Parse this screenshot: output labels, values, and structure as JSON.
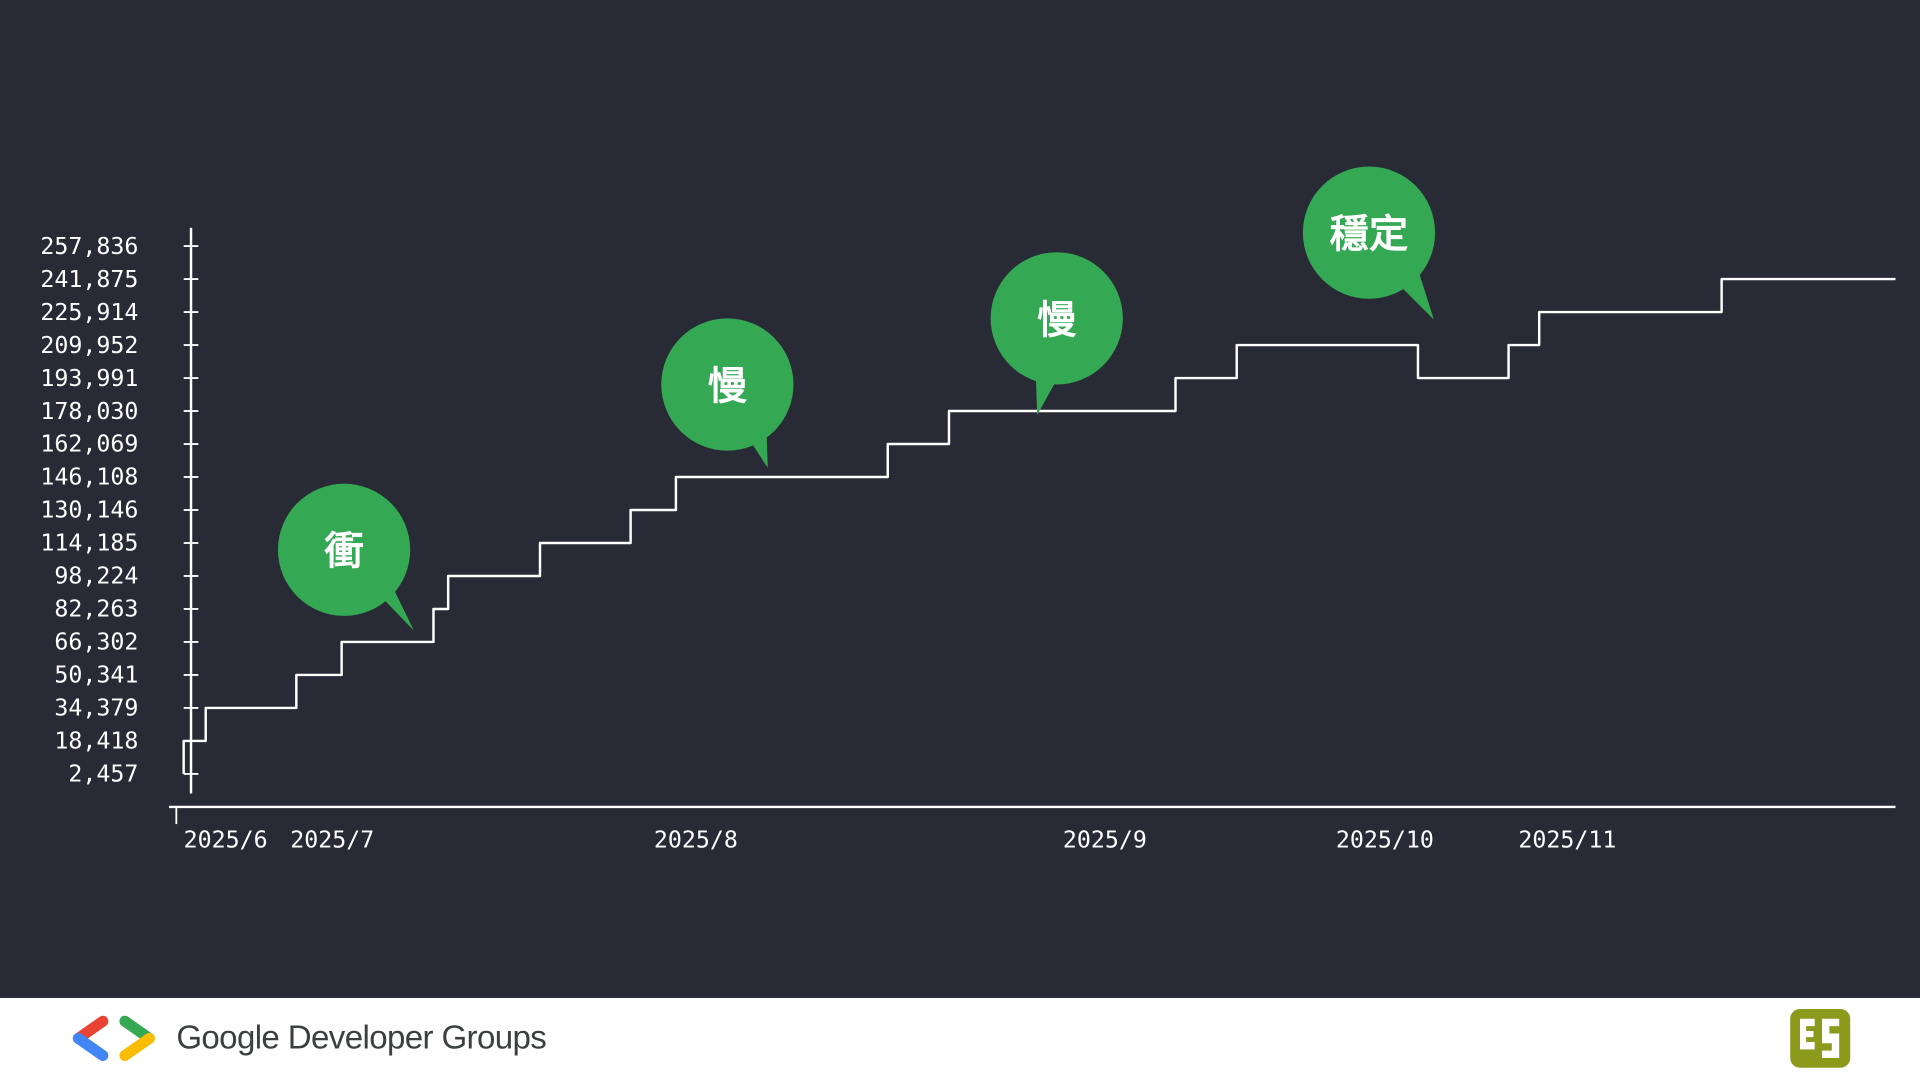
{
  "chart_data": {
    "type": "line",
    "step": "post",
    "x": [
      0,
      18,
      92,
      129,
      204,
      216,
      291,
      365,
      402,
      575,
      625,
      810,
      860,
      1008,
      1082,
      1107,
      1256,
      1343,
      1398
    ],
    "series": [
      {
        "color": "#ffffff",
        "values": [
          2457,
          18418,
          34379,
          50341,
          66302,
          82263,
          98224,
          114185,
          130146,
          146108,
          162069,
          178030,
          193991,
          209952,
          193991,
          209952,
          225914,
          241875,
          241875
        ]
      }
    ],
    "xlim": [
      -12,
      1398
    ],
    "xticks": [
      {
        "value": 0,
        "label": "2025/6"
      },
      {
        "value": 87,
        "label": "2025/7"
      },
      {
        "value": 384,
        "label": "2025/8"
      },
      {
        "value": 718,
        "label": "2025/9"
      },
      {
        "value": 941,
        "label": "2025/10"
      },
      {
        "value": 1090,
        "label": "2025/11"
      }
    ],
    "ylim": [
      -7000,
      266700
    ],
    "yticks": [
      {
        "value": 2457,
        "label": "2,457"
      },
      {
        "value": 18418,
        "label": "18,418"
      },
      {
        "value": 34379,
        "label": "34,379"
      },
      {
        "value": 50341,
        "label": "50,341"
      },
      {
        "value": 66302,
        "label": "66,302"
      },
      {
        "value": 82263,
        "label": "82,263"
      },
      {
        "value": 98224,
        "label": "98,224"
      },
      {
        "value": 114185,
        "label": "114,185"
      },
      {
        "value": 130146,
        "label": "130,146"
      },
      {
        "value": 146108,
        "label": "146,108"
      },
      {
        "value": 162069,
        "label": "162,069"
      },
      {
        "value": 178030,
        "label": "178,030"
      },
      {
        "value": 193991,
        "label": "193,991"
      },
      {
        "value": 209952,
        "label": "209,952"
      },
      {
        "value": 225914,
        "label": "225,914"
      },
      {
        "value": 241875,
        "label": "241,875"
      },
      {
        "value": 257836,
        "label": "257,836"
      }
    ],
    "annotations": [
      {
        "text": "衝",
        "color": "#34a853"
      },
      {
        "text": "慢",
        "color": "#34a853"
      },
      {
        "text": "慢",
        "color": "#34a853"
      },
      {
        "text": "穩定",
        "color": "#34a853"
      }
    ]
  },
  "footer": {
    "brand": "Google Developer Groups"
  }
}
